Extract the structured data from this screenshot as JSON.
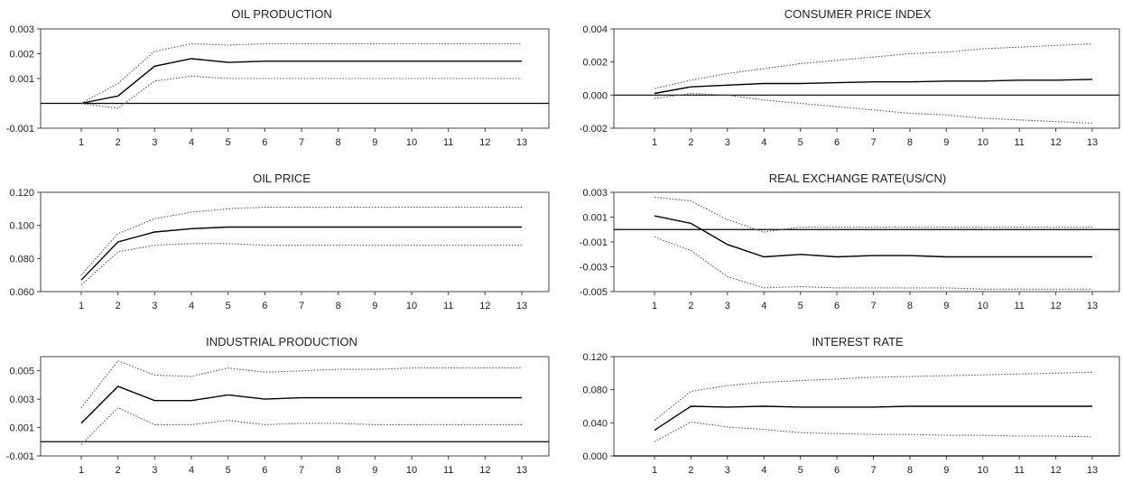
{
  "style": {
    "line_color": "#000000",
    "band_color": "#555555",
    "frame_color": "#444444",
    "background": "#ffffff"
  },
  "chart_data": [
    {
      "type": "line",
      "title": "OIL PRODUCTION",
      "x": [
        1,
        2,
        3,
        4,
        5,
        6,
        7,
        8,
        9,
        10,
        11,
        12,
        13
      ],
      "x_tick_labels": [
        "1",
        "2",
        "3",
        "4",
        "5",
        "6",
        "7",
        "8",
        "9",
        "10",
        "11",
        "12",
        "13"
      ],
      "y_tick_labels": [
        "0.003",
        "0.002",
        "0.001",
        "-0.001"
      ],
      "y_tick_values": [
        0.003,
        0.002,
        0.001,
        -0.001
      ],
      "ylim": [
        -0.001,
        0.003
      ],
      "zero_line": 0,
      "series": [
        {
          "role": "response",
          "values": [
            0.0,
            0.0003,
            0.0015,
            0.0018,
            0.00165,
            0.0017,
            0.0017,
            0.0017,
            0.0017,
            0.0017,
            0.0017,
            0.0017,
            0.0017
          ]
        },
        {
          "role": "upper",
          "values": [
            0.0,
            0.0008,
            0.0021,
            0.0024,
            0.00235,
            0.0024,
            0.0024,
            0.0024,
            0.0024,
            0.0024,
            0.0024,
            0.0024,
            0.0024
          ]
        },
        {
          "role": "lower",
          "values": [
            0.0,
            -0.0002,
            0.0009,
            0.0011,
            0.001,
            0.001,
            0.001,
            0.001,
            0.001,
            0.001,
            0.001,
            0.001,
            0.001
          ]
        }
      ]
    },
    {
      "type": "line",
      "title": "CONSUMER PRICE INDEX",
      "x": [
        1,
        2,
        3,
        4,
        5,
        6,
        7,
        8,
        9,
        10,
        11,
        12,
        13
      ],
      "x_tick_labels": [
        "1",
        "2",
        "3",
        "4",
        "5",
        "6",
        "7",
        "8",
        "9",
        "10",
        "11",
        "12",
        "13"
      ],
      "y_tick_labels": [
        "0.004",
        "0.002",
        "0.000",
        "-0.002"
      ],
      "y_tick_values": [
        0.004,
        0.002,
        0.0,
        -0.002
      ],
      "ylim": [
        -0.002,
        0.004
      ],
      "zero_line": 0,
      "series": [
        {
          "role": "response",
          "values": [
            0.0001,
            0.0005,
            0.0006,
            0.0007,
            0.0007,
            0.00075,
            0.0008,
            0.0008,
            0.00085,
            0.00085,
            0.0009,
            0.0009,
            0.00095
          ]
        },
        {
          "role": "upper",
          "values": [
            0.0004,
            0.0009,
            0.0013,
            0.0016,
            0.0019,
            0.0021,
            0.0023,
            0.0025,
            0.0026,
            0.0028,
            0.0029,
            0.003,
            0.0031
          ]
        },
        {
          "role": "lower",
          "values": [
            -0.0002,
            0.0001,
            0.0,
            -0.0003,
            -0.0005,
            -0.0007,
            -0.0009,
            -0.0011,
            -0.0012,
            -0.0014,
            -0.0015,
            -0.0016,
            -0.0017
          ]
        }
      ]
    },
    {
      "type": "line",
      "title": "OIL PRICE",
      "x": [
        1,
        2,
        3,
        4,
        5,
        6,
        7,
        8,
        9,
        10,
        11,
        12,
        13
      ],
      "x_tick_labels": [
        "1",
        "2",
        "3",
        "4",
        "5",
        "6",
        "7",
        "8",
        "9",
        "10",
        "11",
        "12",
        "13"
      ],
      "y_tick_labels": [
        "0.120",
        "0.100",
        "0.080",
        "0.060"
      ],
      "y_tick_values": [
        0.12,
        0.1,
        0.08,
        0.06
      ],
      "ylim": [
        0.06,
        0.12
      ],
      "zero_line": null,
      "series": [
        {
          "role": "response",
          "values": [
            0.067,
            0.09,
            0.096,
            0.098,
            0.099,
            0.099,
            0.099,
            0.099,
            0.099,
            0.099,
            0.099,
            0.099,
            0.099
          ]
        },
        {
          "role": "upper",
          "values": [
            0.07,
            0.095,
            0.104,
            0.108,
            0.11,
            0.111,
            0.111,
            0.111,
            0.111,
            0.111,
            0.111,
            0.111,
            0.111
          ]
        },
        {
          "role": "lower",
          "values": [
            0.064,
            0.084,
            0.088,
            0.089,
            0.089,
            0.088,
            0.088,
            0.088,
            0.088,
            0.088,
            0.088,
            0.088,
            0.088
          ]
        }
      ]
    },
    {
      "type": "line",
      "title": "REAL EXCHANGE RATE(US/CN)",
      "x": [
        1,
        2,
        3,
        4,
        5,
        6,
        7,
        8,
        9,
        10,
        11,
        12,
        13
      ],
      "x_tick_labels": [
        "1",
        "2",
        "3",
        "4",
        "5",
        "6",
        "7",
        "8",
        "9",
        "10",
        "11",
        "12",
        "13"
      ],
      "y_tick_labels": [
        "0.003",
        "0.001",
        "-0.001",
        "-0.003",
        "-0.005"
      ],
      "y_tick_values": [
        0.003,
        0.001,
        -0.001,
        -0.003,
        -0.005
      ],
      "ylim": [
        -0.005,
        0.003
      ],
      "zero_line": 0,
      "series": [
        {
          "role": "response",
          "values": [
            0.0011,
            0.0005,
            -0.0012,
            -0.0022,
            -0.002,
            -0.0022,
            -0.0021,
            -0.0021,
            -0.0022,
            -0.0022,
            -0.0022,
            -0.0022,
            -0.0022
          ]
        },
        {
          "role": "upper",
          "values": [
            0.0026,
            0.0023,
            0.0008,
            -0.0002,
            0.0002,
            0.0002,
            0.0002,
            0.0002,
            0.0002,
            0.0002,
            0.0002,
            0.0002,
            0.0002
          ]
        },
        {
          "role": "lower",
          "values": [
            -0.0006,
            -0.0017,
            -0.0038,
            -0.0047,
            -0.0046,
            -0.0047,
            -0.0047,
            -0.0047,
            -0.0047,
            -0.0048,
            -0.0048,
            -0.0048,
            -0.0048
          ]
        }
      ]
    },
    {
      "type": "line",
      "title": "INDUSTRIAL PRODUCTION",
      "x": [
        1,
        2,
        3,
        4,
        5,
        6,
        7,
        8,
        9,
        10,
        11,
        12,
        13
      ],
      "x_tick_labels": [
        "1",
        "2",
        "3",
        "4",
        "5",
        "6",
        "7",
        "8",
        "9",
        "10",
        "11",
        "12",
        "13"
      ],
      "y_tick_labels": [
        "0.005",
        "0.003",
        "0.001",
        "-0.001"
      ],
      "y_tick_values": [
        0.005,
        0.003,
        0.001,
        -0.001
      ],
      "ylim": [
        -0.001,
        0.006
      ],
      "zero_line": 0,
      "series": [
        {
          "role": "response",
          "values": [
            0.0013,
            0.0039,
            0.0029,
            0.0029,
            0.0033,
            0.003,
            0.0031,
            0.0031,
            0.0031,
            0.0031,
            0.0031,
            0.0031,
            0.0031
          ]
        },
        {
          "role": "upper",
          "values": [
            0.0024,
            0.0057,
            0.0047,
            0.0046,
            0.0052,
            0.0049,
            0.005,
            0.0051,
            0.0051,
            0.0052,
            0.0052,
            0.0052,
            0.0052
          ]
        },
        {
          "role": "lower",
          "values": [
            -0.0002,
            0.0024,
            0.0012,
            0.0012,
            0.0015,
            0.0012,
            0.0013,
            0.0013,
            0.0012,
            0.0012,
            0.0012,
            0.0012,
            0.0012
          ]
        }
      ]
    },
    {
      "type": "line",
      "title": "INTEREST RATE",
      "x": [
        1,
        2,
        3,
        4,
        5,
        6,
        7,
        8,
        9,
        10,
        11,
        12,
        13
      ],
      "x_tick_labels": [
        "1",
        "2",
        "3",
        "4",
        "5",
        "6",
        "7",
        "8",
        "9",
        "10",
        "11",
        "12",
        "13"
      ],
      "y_tick_labels": [
        "0.120",
        "0.080",
        "0.040",
        "0.000"
      ],
      "y_tick_values": [
        0.12,
        0.08,
        0.04,
        0.0
      ],
      "ylim": [
        0.0,
        0.12
      ],
      "zero_line": 0,
      "series": [
        {
          "role": "response",
          "values": [
            0.031,
            0.06,
            0.059,
            0.06,
            0.059,
            0.059,
            0.059,
            0.06,
            0.06,
            0.06,
            0.06,
            0.06,
            0.06
          ]
        },
        {
          "role": "upper",
          "values": [
            0.043,
            0.078,
            0.085,
            0.089,
            0.091,
            0.093,
            0.095,
            0.096,
            0.097,
            0.098,
            0.099,
            0.1,
            0.101
          ]
        },
        {
          "role": "lower",
          "values": [
            0.017,
            0.041,
            0.035,
            0.032,
            0.028,
            0.027,
            0.026,
            0.026,
            0.025,
            0.025,
            0.024,
            0.024,
            0.023
          ]
        }
      ]
    }
  ]
}
